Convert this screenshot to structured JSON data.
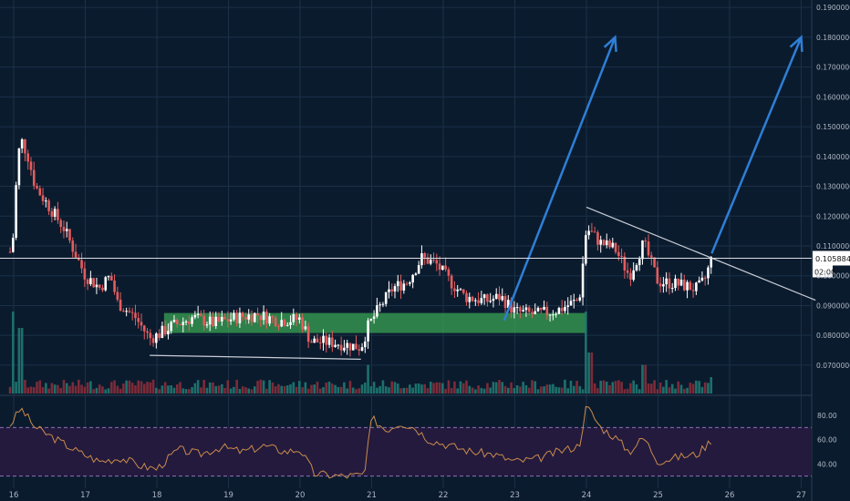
{
  "chart_data": {
    "type": "candlestick",
    "x_ticks": [
      "16",
      "17",
      "18",
      "19",
      "20",
      "21",
      "22",
      "23",
      "24",
      "25",
      "26",
      "27"
    ],
    "price_ticks": [
      {
        "value": 0.07,
        "label": "0.07000000"
      },
      {
        "value": 0.08,
        "label": "0.08000000"
      },
      {
        "value": 0.09,
        "label": "0.09000000"
      },
      {
        "value": 0.1,
        "label": "0.10000000"
      },
      {
        "value": 0.11,
        "label": "0.11000000"
      },
      {
        "value": 0.12,
        "label": "0.12000000"
      },
      {
        "value": 0.13,
        "label": "0.13000000"
      },
      {
        "value": 0.14,
        "label": "0.14000000"
      },
      {
        "value": 0.15,
        "label": "0.15000000"
      },
      {
        "value": 0.16,
        "label": "0.16000000"
      },
      {
        "value": 0.17,
        "label": "0.17000000"
      },
      {
        "value": 0.18,
        "label": "0.18000000"
      },
      {
        "value": 0.19,
        "label": "0.19000000"
      }
    ],
    "price_range": [
      0.0605,
      0.1925
    ],
    "last_price": 0.1058841,
    "last_price_label": "0.10588410",
    "countdown_label": "02:00",
    "rsi_ticks": [
      {
        "value": 40,
        "label": "40.00"
      },
      {
        "value": 60,
        "label": "60.00"
      },
      {
        "value": 80,
        "label": "80.00"
      }
    ],
    "rsi_range": [
      20,
      95
    ],
    "rsi_bands": [
      30,
      70
    ],
    "support_zone": {
      "x_from": 18.1,
      "x_to": 24.0,
      "y_from": 0.0808,
      "y_to": 0.0875
    },
    "trendlines": [
      {
        "x1": 17.9,
        "y1": 0.0733,
        "x2": 20.85,
        "y2": 0.072,
        "color": "#c8cdd6"
      },
      {
        "x1": 24.0,
        "y1": 0.123,
        "x2": 27.2,
        "y2": 0.0918,
        "color": "#c8cdd6"
      }
    ],
    "projection_arrows": [
      {
        "x1": 22.85,
        "y1": 0.085,
        "x2": 24.4,
        "y2": 0.18
      },
      {
        "x1": 25.75,
        "y1": 0.1075,
        "x2": 27.0,
        "y2": 0.18
      }
    ],
    "key_points": [
      {
        "x": 15.95,
        "close": 0.108
      },
      {
        "x": 16.0,
        "close": 0.114
      },
      {
        "x": 16.05,
        "close": 0.138
      },
      {
        "x": 16.1,
        "close": 0.146
      },
      {
        "x": 16.2,
        "close": 0.14
      },
      {
        "x": 16.3,
        "close": 0.13
      },
      {
        "x": 16.5,
        "close": 0.123
      },
      {
        "x": 16.7,
        "close": 0.116
      },
      {
        "x": 16.85,
        "close": 0.108
      },
      {
        "x": 17.0,
        "close": 0.1
      },
      {
        "x": 17.2,
        "close": 0.096
      },
      {
        "x": 17.35,
        "close": 0.1
      },
      {
        "x": 17.45,
        "close": 0.091
      },
      {
        "x": 17.7,
        "close": 0.086
      },
      {
        "x": 17.9,
        "close": 0.079
      },
      {
        "x": 18.0,
        "close": 0.08
      },
      {
        "x": 18.2,
        "close": 0.083
      },
      {
        "x": 18.5,
        "close": 0.086
      },
      {
        "x": 18.8,
        "close": 0.084
      },
      {
        "x": 19.1,
        "close": 0.086
      },
      {
        "x": 19.4,
        "close": 0.087
      },
      {
        "x": 19.7,
        "close": 0.085
      },
      {
        "x": 20.0,
        "close": 0.0855
      },
      {
        "x": 20.15,
        "close": 0.078
      },
      {
        "x": 20.5,
        "close": 0.0775
      },
      {
        "x": 20.85,
        "close": 0.076
      },
      {
        "x": 20.95,
        "close": 0.083
      },
      {
        "x": 21.1,
        "close": 0.089
      },
      {
        "x": 21.3,
        "close": 0.096
      },
      {
        "x": 21.5,
        "close": 0.098
      },
      {
        "x": 21.7,
        "close": 0.106
      },
      {
        "x": 21.9,
        "close": 0.104
      },
      {
        "x": 22.1,
        "close": 0.098
      },
      {
        "x": 22.3,
        "close": 0.093
      },
      {
        "x": 22.6,
        "close": 0.0915
      },
      {
        "x": 22.8,
        "close": 0.093
      },
      {
        "x": 23.0,
        "close": 0.088
      },
      {
        "x": 23.3,
        "close": 0.087
      },
      {
        "x": 23.6,
        "close": 0.0885
      },
      {
        "x": 23.9,
        "close": 0.092
      },
      {
        "x": 24.0,
        "close": 0.116
      },
      {
        "x": 24.2,
        "close": 0.111
      },
      {
        "x": 24.4,
        "close": 0.109
      },
      {
        "x": 24.6,
        "close": 0.1
      },
      {
        "x": 24.8,
        "close": 0.111
      },
      {
        "x": 25.0,
        "close": 0.098
      },
      {
        "x": 25.2,
        "close": 0.0975
      },
      {
        "x": 25.4,
        "close": 0.0965
      },
      {
        "x": 25.55,
        "close": 0.0955
      },
      {
        "x": 25.65,
        "close": 0.0985
      },
      {
        "x": 25.75,
        "close": 0.1059
      }
    ],
    "volume_spikes": [
      {
        "x": 16.0,
        "v": 1.0
      },
      {
        "x": 16.1,
        "v": 0.8
      },
      {
        "x": 20.95,
        "v": 0.35
      },
      {
        "x": 24.0,
        "v": 1.0
      },
      {
        "x": 24.05,
        "v": 0.5
      },
      {
        "x": 24.8,
        "v": 0.35
      },
      {
        "x": 25.75,
        "v": 0.2
      }
    ],
    "rsi_points": [
      {
        "x": 15.95,
        "v": 72
      },
      {
        "x": 16.1,
        "v": 86
      },
      {
        "x": 16.3,
        "v": 70
      },
      {
        "x": 16.6,
        "v": 60
      },
      {
        "x": 16.9,
        "v": 50
      },
      {
        "x": 17.2,
        "v": 42
      },
      {
        "x": 17.5,
        "v": 45
      },
      {
        "x": 17.8,
        "v": 38
      },
      {
        "x": 18.0,
        "v": 36
      },
      {
        "x": 18.3,
        "v": 52
      },
      {
        "x": 18.6,
        "v": 48
      },
      {
        "x": 18.9,
        "v": 54
      },
      {
        "x": 19.2,
        "v": 50
      },
      {
        "x": 19.5,
        "v": 55
      },
      {
        "x": 19.8,
        "v": 50
      },
      {
        "x": 20.0,
        "v": 52
      },
      {
        "x": 20.2,
        "v": 32
      },
      {
        "x": 20.6,
        "v": 30
      },
      {
        "x": 20.9,
        "v": 31
      },
      {
        "x": 21.0,
        "v": 78
      },
      {
        "x": 21.2,
        "v": 68
      },
      {
        "x": 21.4,
        "v": 74
      },
      {
        "x": 21.6,
        "v": 70
      },
      {
        "x": 21.8,
        "v": 60
      },
      {
        "x": 22.1,
        "v": 55
      },
      {
        "x": 22.4,
        "v": 50
      },
      {
        "x": 22.7,
        "v": 48
      },
      {
        "x": 23.0,
        "v": 42
      },
      {
        "x": 23.3,
        "v": 44
      },
      {
        "x": 23.6,
        "v": 50
      },
      {
        "x": 23.9,
        "v": 55
      },
      {
        "x": 24.0,
        "v": 88
      },
      {
        "x": 24.2,
        "v": 70
      },
      {
        "x": 24.4,
        "v": 62
      },
      {
        "x": 24.6,
        "v": 50
      },
      {
        "x": 24.8,
        "v": 62
      },
      {
        "x": 25.0,
        "v": 42
      },
      {
        "x": 25.3,
        "v": 46
      },
      {
        "x": 25.55,
        "v": 48
      },
      {
        "x": 25.75,
        "v": 60
      }
    ]
  },
  "colors": {
    "background": "#0b1b2e",
    "grid": "#1b3047",
    "up": "#ffffff",
    "down": "#e35d5d",
    "zone": "#3aa353",
    "arrow": "#2e7fd6",
    "rsi_line": "#c98c4a",
    "rsi_band": "#241a3e",
    "axis_text": "#aeb6c2"
  }
}
